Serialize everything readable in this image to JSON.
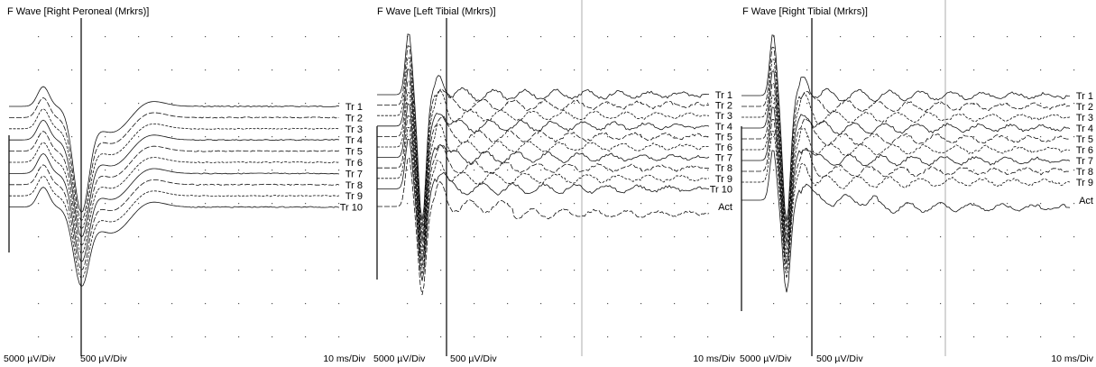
{
  "chart_data": [
    {
      "type": "line",
      "title": "F Wave [Right Peroneal (Mrkrs)]",
      "amplitude_scales": [
        "5000 µV/Div",
        "500 µV/Div"
      ],
      "time_scale": "10 ms/Div",
      "traces": [
        "Tr 1",
        "Tr 2",
        "Tr 3",
        "Tr 4",
        "Tr 5",
        "Tr 6",
        "Tr 7",
        "Tr 8",
        "Tr 9",
        "Tr 10"
      ],
      "grid": "dotted",
      "cursor_ms": 13
    },
    {
      "type": "line",
      "title": "F Wave [Left Tibial (Mrkrs)]",
      "amplitude_scales": [
        "5000 µV/Div",
        "500 µV/Div"
      ],
      "time_scale": "10 ms/Div",
      "traces": [
        "Tr 1",
        "Tr 2",
        "Tr 3",
        "Tr 4",
        "Tr 5",
        "Tr 6",
        "Tr 7",
        "Tr 8",
        "Tr 9",
        "Tr 10",
        "Act"
      ],
      "grid": "dotted",
      "cursor_ms": 13
    },
    {
      "type": "line",
      "title": "F Wave [Right Tibial (Mrkrs)]",
      "amplitude_scales": [
        "5000 µV/Div",
        "500 µV/Div"
      ],
      "time_scale": "10 ms/Div",
      "traces": [
        "Tr 1",
        "Tr 2",
        "Tr 3",
        "Tr 4",
        "Tr 5",
        "Tr 6",
        "Tr 7",
        "Tr 8",
        "Tr 9",
        "Act"
      ],
      "grid": "dotted",
      "cursor_ms": 13
    }
  ]
}
